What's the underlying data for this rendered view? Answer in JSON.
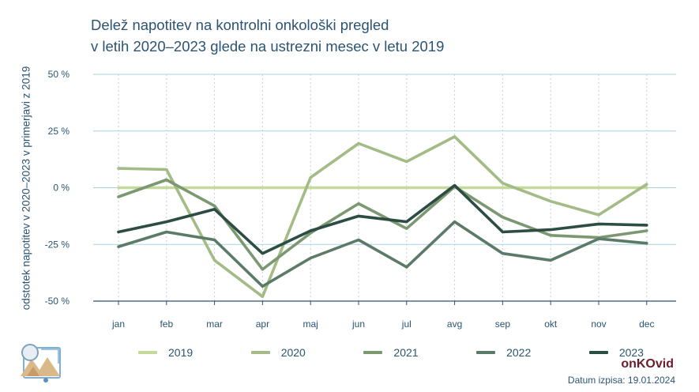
{
  "title_lines": [
    "Delež napotitev na kontrolni onkološki pregled",
    "v letih 2020–2023 glede na ustrezni mesec v letu 2019"
  ],
  "brand": "onKOvid",
  "print_date": "Datum izpisa: 19.01.2024",
  "logo_icon": "onkovid-logo-icon",
  "chart_data": {
    "type": "line",
    "title": "Delež napotitev na kontrolni onkološki pregled v letih 2020–2023 glede na ustrezni mesec v letu 2019",
    "xlabel": "",
    "ylabel": "odstotek napotitev v 2020–2023 v primerjavi z 2019",
    "categories": [
      "jan",
      "feb",
      "mar",
      "apr",
      "maj",
      "jun",
      "jul",
      "avg",
      "sep",
      "okt",
      "nov",
      "dec"
    ],
    "ylim": [
      -50,
      50
    ],
    "yticks": [
      50,
      25,
      0,
      -25,
      -50
    ],
    "ytick_labels": [
      "50 %",
      "25 %",
      "0 %",
      "-25 %",
      "-50 %"
    ],
    "grid": true,
    "legend_position": "bottom",
    "series": [
      {
        "name": "2019",
        "color": "#c5d99a",
        "values": [
          0,
          0,
          0,
          0,
          0,
          0,
          0,
          0,
          0,
          0,
          0,
          0
        ]
      },
      {
        "name": "2020",
        "color": "#a3bb85",
        "values": [
          8.5,
          8,
          -32,
          -48,
          4.5,
          19.5,
          11.5,
          22.5,
          2,
          -6,
          -12,
          1.5
        ]
      },
      {
        "name": "2021",
        "color": "#7b9870",
        "values": [
          -4,
          3.5,
          -8,
          -36,
          -20,
          -7,
          -18,
          0.5,
          -13,
          -21,
          -22,
          -19
        ]
      },
      {
        "name": "2022",
        "color": "#5b7b68",
        "values": [
          -26,
          -19.5,
          -23,
          -43.5,
          -31,
          -23,
          -35,
          -15,
          -29,
          -32,
          -22.5,
          -24.5
        ]
      },
      {
        "name": "2023",
        "color": "#2c4c44",
        "values": [
          -19.5,
          -15,
          -9.5,
          -29,
          -19,
          -12.5,
          -15,
          1,
          -19.5,
          -18.5,
          -16,
          -16.5
        ]
      }
    ]
  }
}
